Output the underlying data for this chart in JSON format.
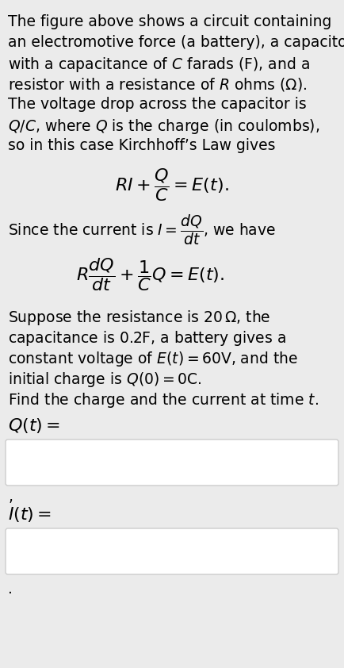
{
  "bg_color": "#ebebeb",
  "text_color": "#000000",
  "box_color": "#ffffff",
  "box_border": "#cccccc",
  "para1_lines": [
    "The figure above shows a circuit containing",
    "an electromotive force (a battery), a capacitor",
    "with a capacitance of $\\mathit{C}$ farads (F), and a",
    "resistor with a resistance of $\\mathit{R}$ ohms $(\\Omega)$.",
    "The voltage drop across the capacitor is",
    "$\\mathit{Q/C}$, where $\\mathit{Q}$ is the charge (in coulombs),",
    "so in this case Kirchhoff’s Law gives"
  ],
  "eq1": "$RI + \\dfrac{Q}{C} = E(t).$",
  "para2": "Since the current is $I = \\dfrac{dQ}{dt}$, we have",
  "eq2": "$R\\dfrac{dQ}{dt} + \\dfrac{1}{C}Q = E(t).$",
  "para3_lines": [
    "Suppose the resistance is $20\\,\\Omega$, the",
    "capacitance is $0.2\\mathrm{F}$, a battery gives a",
    "constant voltage of $E(t) = 60\\mathrm{V}$, and the",
    "initial charge is $Q(0) = 0\\mathrm{C}$.",
    "Find the charge and the current at time $t$."
  ],
  "label_Qt": "$Q(t) =$",
  "label_It": "$I(t) =$",
  "comma": ","
}
